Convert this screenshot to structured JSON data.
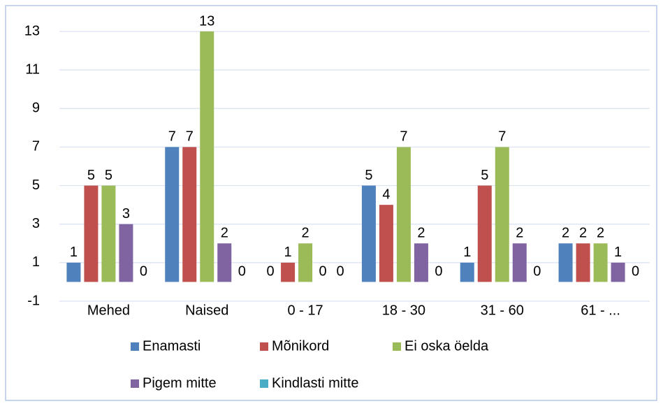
{
  "chart_data": {
    "type": "bar",
    "categories": [
      "Mehed",
      "Naised",
      "0 - 17",
      "18 - 30",
      "31 - 60",
      "61 - ..."
    ],
    "series": [
      {
        "name": "Enamasti",
        "color": "#4f81bd",
        "values": [
          1,
          7,
          0,
          5,
          1,
          2
        ]
      },
      {
        "name": "Mõnikord",
        "color": "#c0504d",
        "values": [
          5,
          7,
          1,
          4,
          5,
          2
        ]
      },
      {
        "name": "Ei oska öelda",
        "color": "#9bbb59",
        "values": [
          5,
          13,
          2,
          7,
          7,
          2
        ]
      },
      {
        "name": "Pigem mitte",
        "color": "#8064a2",
        "values": [
          3,
          2,
          0,
          2,
          2,
          1
        ]
      },
      {
        "name": "Kindlasti mitte",
        "color": "#4bacc6",
        "values": [
          0,
          0,
          0,
          0,
          0,
          0
        ]
      }
    ],
    "ylim": [
      -1,
      13
    ],
    "yticks": [
      -1,
      1,
      3,
      5,
      7,
      9,
      11,
      13
    ],
    "grid": true,
    "legend": "bottom"
  }
}
